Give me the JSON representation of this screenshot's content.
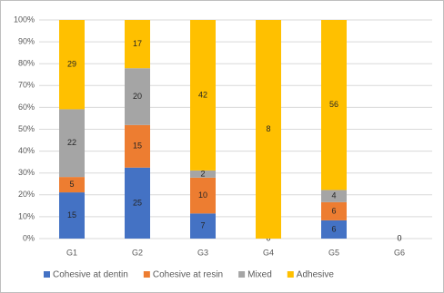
{
  "chart_data": {
    "type": "stacked_percent_bar",
    "categories": [
      "G1",
      "G2",
      "G3",
      "G4",
      "G5",
      "G6"
    ],
    "series": [
      {
        "name": "Cohesive at dentin",
        "color": "#4472c4",
        "values": [
          15,
          25,
          7,
          0,
          6,
          0
        ]
      },
      {
        "name": "Cohesive at resin",
        "color": "#ed7d31",
        "values": [
          5,
          15,
          10,
          null,
          6,
          null
        ]
      },
      {
        "name": "Mixed",
        "color": "#a5a5a5",
        "values": [
          22,
          20,
          2,
          null,
          4,
          null
        ]
      },
      {
        "name": "Adhesive",
        "color": "#ffc000",
        "values": [
          29,
          17,
          42,
          8,
          56,
          null
        ]
      }
    ],
    "ylim": [
      0,
      100
    ],
    "yticks": [
      {
        "value": 0,
        "label": "0%"
      },
      {
        "value": 10,
        "label": "10%"
      },
      {
        "value": 20,
        "label": "20%"
      },
      {
        "value": 30,
        "label": "30%"
      },
      {
        "value": 40,
        "label": "40%"
      },
      {
        "value": 50,
        "label": "50%"
      },
      {
        "value": 60,
        "label": "60%"
      },
      {
        "value": 70,
        "label": "70%"
      },
      {
        "value": 80,
        "label": "80%"
      },
      {
        "value": 90,
        "label": "90%"
      },
      {
        "value": 100,
        "label": "100%"
      }
    ],
    "grid": true,
    "legend": "bottom"
  }
}
